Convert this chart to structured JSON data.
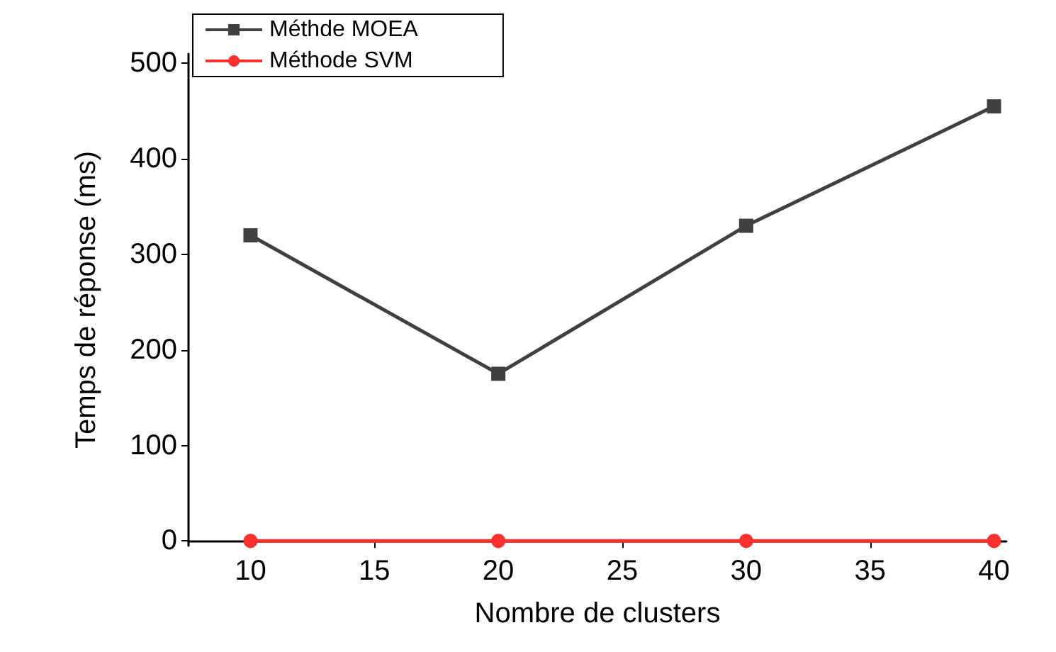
{
  "chart_data": {
    "type": "line",
    "xlabel": "Nombre de clusters",
    "ylabel": "Temps de réponse (ms)",
    "x": [
      10,
      20,
      30,
      40
    ],
    "series": [
      {
        "name": "Méthde MOEA",
        "color": "#404040",
        "marker": "square",
        "values": [
          320,
          175,
          330,
          455
        ]
      },
      {
        "name": "Méthode SVM",
        "color": "#ff3030",
        "marker": "circle",
        "values": [
          0,
          0,
          0,
          0
        ]
      }
    ],
    "xlim": [
      7.5,
      40.5
    ],
    "xticks": [
      10,
      15,
      20,
      25,
      30,
      35,
      40
    ],
    "ylim": [
      -5,
      510
    ],
    "yticks": [
      0,
      100,
      200,
      300,
      400,
      500
    ],
    "grid": false,
    "legend": "top left",
    "line_style": "solid"
  }
}
